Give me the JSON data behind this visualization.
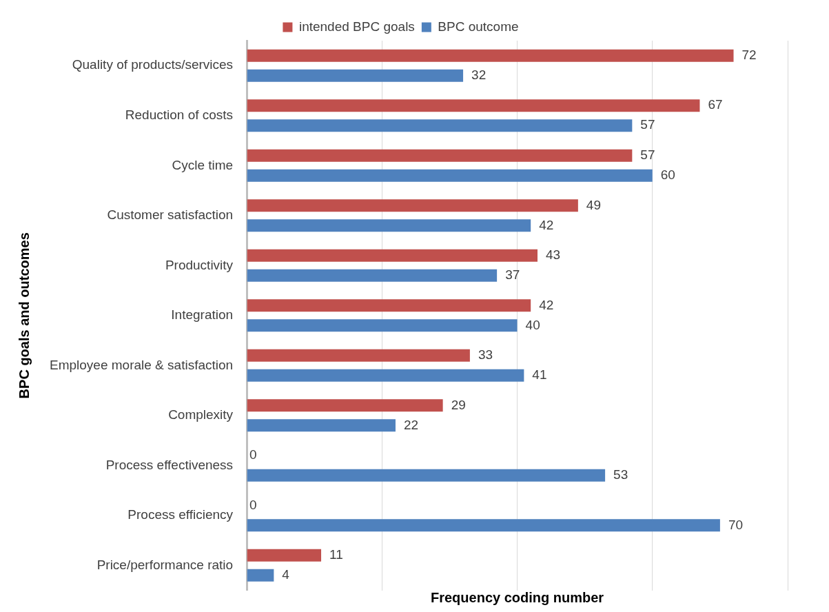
{
  "chart_data": {
    "type": "bar",
    "orientation": "horizontal",
    "ylabel": "BPC goals and outcomes",
    "xlabel": "Frequency coding number",
    "categories": [
      "Quality of products/services",
      "Reduction of costs",
      "Cycle time",
      "Customer satisfaction",
      "Productivity",
      "Integration",
      "Employee morale & satisfaction",
      "Complexity",
      "Process effectiveness",
      "Process efficiency",
      "Price/performance ratio"
    ],
    "series": [
      {
        "name": "intended BPC goals",
        "color": "#c0504d",
        "values": [
          72,
          67,
          57,
          49,
          43,
          42,
          33,
          29,
          0,
          0,
          11
        ]
      },
      {
        "name": "BPC outcome",
        "color": "#4f81bd",
        "values": [
          32,
          57,
          60,
          42,
          37,
          40,
          41,
          22,
          53,
          70,
          4
        ]
      }
    ],
    "xlim": [
      0,
      80
    ],
    "xticks": [
      {
        "value": 0,
        "label": null
      },
      {
        "value": 20,
        "label": null
      },
      {
        "value": 40,
        "label": null
      },
      {
        "value": 60,
        "label": null
      },
      {
        "value": 80,
        "label": null
      }
    ],
    "tick_labels": "y",
    "grid": "x",
    "legend": "top",
    "data_labels": true
  }
}
